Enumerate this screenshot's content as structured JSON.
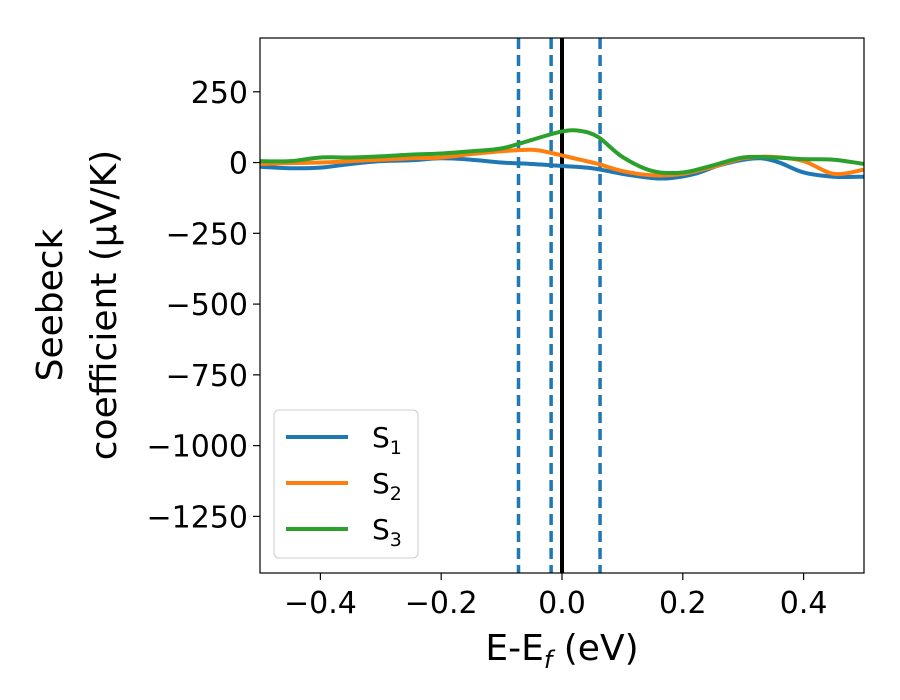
{
  "chart_data": {
    "type": "line",
    "title": "",
    "xlabel": {
      "base": "E-E",
      "sub": "f",
      "unit": " (eV)"
    },
    "ylabel": {
      "line1": "Seebeck",
      "line2": "coefficient  (μV/K)"
    },
    "xlim": [
      -0.5,
      0.5
    ],
    "ylim": [
      -1450,
      440
    ],
    "xticks": [
      -0.4,
      -0.2,
      0.0,
      0.2,
      0.4
    ],
    "xtick_labels": [
      "−0.4",
      "−0.2",
      "0.0",
      "0.2",
      "0.4"
    ],
    "yticks": [
      250,
      0,
      -250,
      -500,
      -750,
      -1000,
      -1250
    ],
    "ytick_labels": [
      "250",
      "0",
      "−250",
      "−500",
      "−750",
      "−1000",
      "−1250"
    ],
    "grid": false,
    "legend_position": "lower-left",
    "vlines": [
      {
        "x": -0.072,
        "style": "dashed",
        "color": "#1f77b4"
      },
      {
        "x": -0.018,
        "style": "dashed",
        "color": "#1f77b4"
      },
      {
        "x": 0.0,
        "style": "solid",
        "color": "#000000"
      },
      {
        "x": 0.063,
        "style": "dashed",
        "color": "#1f77b4"
      }
    ],
    "series": [
      {
        "name": {
          "base": "S",
          "sub": "1"
        },
        "color": "#1f77b4",
        "points": [
          [
            -0.5,
            -15
          ],
          [
            -0.45,
            -20
          ],
          [
            -0.4,
            -18
          ],
          [
            -0.35,
            -5
          ],
          [
            -0.3,
            5
          ],
          [
            -0.25,
            8
          ],
          [
            -0.2,
            15
          ],
          [
            -0.15,
            10
          ],
          [
            -0.1,
            0
          ],
          [
            -0.05,
            -5
          ],
          [
            0.0,
            -12
          ],
          [
            0.05,
            -20
          ],
          [
            0.1,
            -40
          ],
          [
            0.15,
            -55
          ],
          [
            0.18,
            -55
          ],
          [
            0.22,
            -40
          ],
          [
            0.26,
            -10
          ],
          [
            0.3,
            10
          ],
          [
            0.33,
            15
          ],
          [
            0.36,
            0
          ],
          [
            0.4,
            -35
          ],
          [
            0.45,
            -50
          ],
          [
            0.5,
            -50
          ]
        ]
      },
      {
        "name": {
          "base": "S",
          "sub": "2"
        },
        "color": "#ff7f0e",
        "points": [
          [
            -0.5,
            -5
          ],
          [
            -0.45,
            -2
          ],
          [
            -0.4,
            0
          ],
          [
            -0.35,
            5
          ],
          [
            -0.3,
            10
          ],
          [
            -0.25,
            15
          ],
          [
            -0.2,
            18
          ],
          [
            -0.15,
            30
          ],
          [
            -0.1,
            40
          ],
          [
            -0.05,
            45
          ],
          [
            -0.02,
            35
          ],
          [
            0.0,
            25
          ],
          [
            0.03,
            10
          ],
          [
            0.06,
            -5
          ],
          [
            0.1,
            -30
          ],
          [
            0.15,
            -45
          ],
          [
            0.2,
            -40
          ],
          [
            0.25,
            -15
          ],
          [
            0.3,
            15
          ],
          [
            0.35,
            20
          ],
          [
            0.4,
            5
          ],
          [
            0.45,
            -40
          ],
          [
            0.5,
            -25
          ]
        ]
      },
      {
        "name": {
          "base": "S",
          "sub": "3"
        },
        "color": "#2ca02c",
        "points": [
          [
            -0.5,
            5
          ],
          [
            -0.45,
            5
          ],
          [
            -0.4,
            18
          ],
          [
            -0.35,
            18
          ],
          [
            -0.3,
            22
          ],
          [
            -0.25,
            28
          ],
          [
            -0.2,
            32
          ],
          [
            -0.15,
            40
          ],
          [
            -0.1,
            50
          ],
          [
            -0.05,
            80
          ],
          [
            0.0,
            110
          ],
          [
            0.03,
            112
          ],
          [
            0.06,
            90
          ],
          [
            0.1,
            20
          ],
          [
            0.15,
            -30
          ],
          [
            0.2,
            -35
          ],
          [
            0.25,
            -10
          ],
          [
            0.3,
            18
          ],
          [
            0.35,
            18
          ],
          [
            0.4,
            12
          ],
          [
            0.45,
            10
          ],
          [
            0.5,
            -5
          ]
        ]
      }
    ]
  }
}
